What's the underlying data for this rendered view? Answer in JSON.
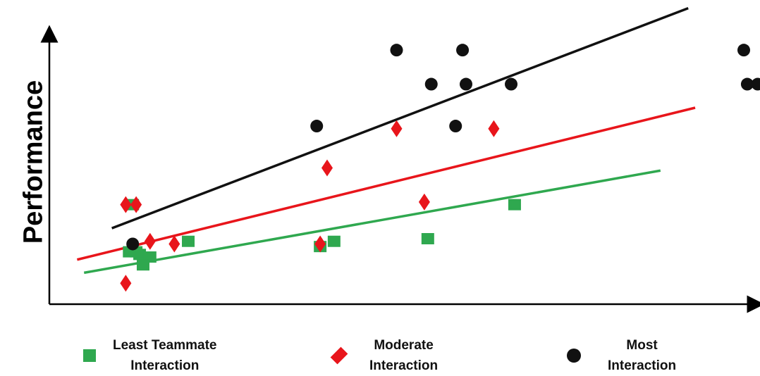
{
  "chart_data": {
    "type": "scatter",
    "title": "",
    "xlabel": "",
    "ylabel": "Performance",
    "xlim": [
      0,
      10
    ],
    "ylim": [
      0,
      10
    ],
    "grid": false,
    "legend_position": "bottom",
    "series": [
      {
        "name": "Least Teammate Interaction",
        "marker": "square",
        "color": "#2fa84f",
        "x": [
          1.2,
          1.3,
          1.45,
          1.35,
          1.25,
          1.15,
          2.0,
          3.9,
          4.1,
          5.45,
          6.7
        ],
        "y": [
          3.8,
          1.9,
          1.8,
          1.5,
          2.0,
          2.0,
          2.4,
          2.2,
          2.4,
          2.5,
          3.8
        ],
        "trend": [
          [
            0.5,
            1.2
          ],
          [
            8.8,
            5.1
          ]
        ]
      },
      {
        "name": "Moderate Interaction",
        "marker": "diamond",
        "color": "#e8151b",
        "x": [
          1.1,
          1.25,
          1.45,
          1.1,
          1.8,
          3.9,
          4.0,
          5.0,
          5.4,
          6.4
        ],
        "y": [
          3.8,
          3.8,
          2.4,
          0.8,
          2.3,
          2.3,
          5.2,
          6.7,
          3.9,
          6.7
        ],
        "trend": [
          [
            0.4,
            1.7
          ],
          [
            9.3,
            7.5
          ]
        ]
      },
      {
        "name": "Most Interaction",
        "marker": "circle",
        "color": "#111111",
        "x": [
          1.2,
          3.85,
          5.0,
          5.5,
          5.85,
          5.95,
          6.0,
          6.65,
          10.0,
          10.05,
          10.2
        ],
        "y": [
          2.3,
          6.8,
          9.7,
          8.4,
          6.8,
          9.7,
          8.4,
          8.4,
          9.7,
          8.4,
          8.4
        ],
        "trend": [
          [
            0.9,
            2.9
          ],
          [
            9.2,
            11.3
          ]
        ]
      }
    ]
  },
  "legend": {
    "items": [
      {
        "line1": "Least Teammate",
        "line2": "Interaction"
      },
      {
        "line1": "Moderate",
        "line2": "Interaction"
      },
      {
        "line1": "Most",
        "line2": "Interaction"
      }
    ]
  }
}
